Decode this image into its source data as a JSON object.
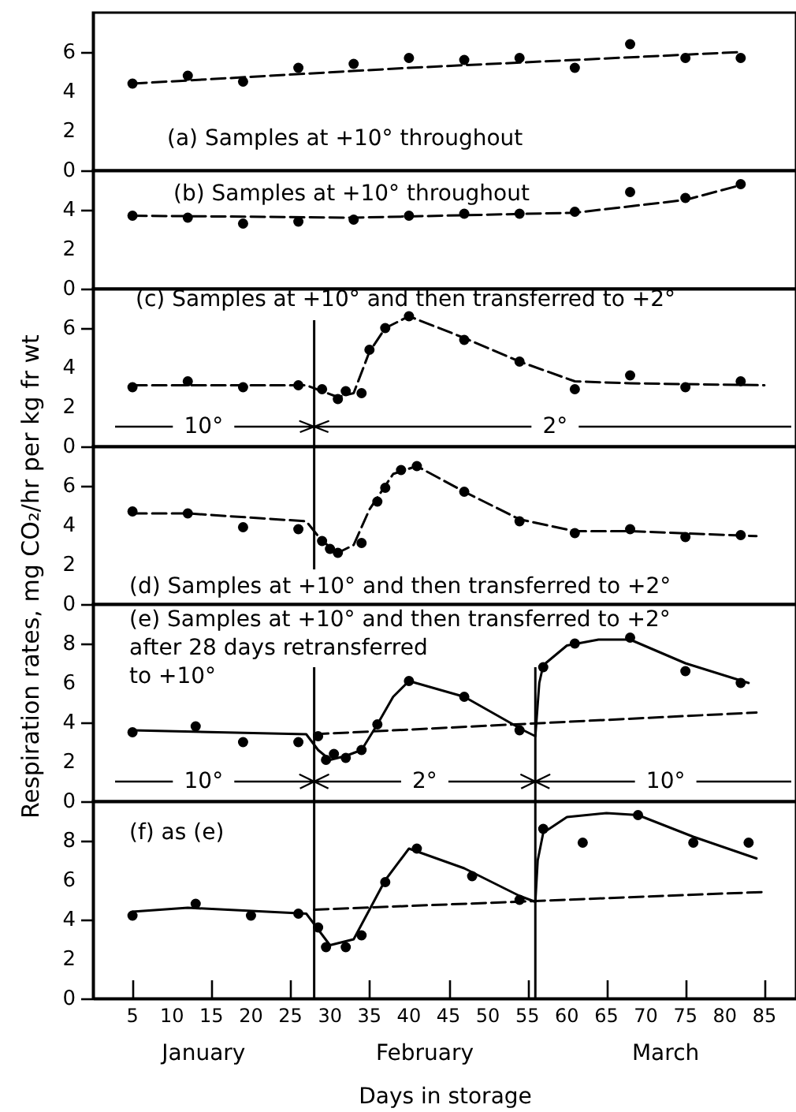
{
  "chart_data": [
    {
      "type": "scatter",
      "xlim": [
        0,
        89
      ],
      "ylim": [
        0,
        8
      ],
      "yticks": [
        0,
        2,
        4,
        6
      ],
      "tick_labels": "y",
      "series": [
        {
          "type": "scatter",
          "color": "#000000",
          "marker": "circle",
          "x": [
            5,
            12,
            19,
            26,
            33,
            40,
            47,
            54,
            61,
            68,
            75,
            82
          ],
          "values": [
            4.4,
            4.8,
            4.5,
            5.2,
            5.4,
            5.7,
            5.6,
            5.7,
            5.2,
            6.4,
            5.7,
            5.7
          ]
        },
        {
          "type": "line",
          "color": "#000000",
          "line_style": "dashed",
          "x": [
            5,
            40,
            82
          ],
          "values": [
            4.4,
            5.2,
            6.0
          ]
        }
      ],
      "annotations": [
        "(a) Samples at +10° throughout"
      ]
    },
    {
      "type": "scatter",
      "xlim": [
        0,
        89
      ],
      "ylim": [
        0,
        6
      ],
      "yticks": [
        0,
        2,
        4
      ],
      "tick_labels": "y",
      "series": [
        {
          "type": "scatter",
          "color": "#000000",
          "marker": "circle",
          "x": [
            5,
            12,
            19,
            26,
            33,
            40,
            47,
            54,
            61,
            68,
            75,
            82
          ],
          "values": [
            3.7,
            3.6,
            3.3,
            3.4,
            3.5,
            3.7,
            3.8,
            3.8,
            3.9,
            4.9,
            4.6,
            5.3
          ]
        },
        {
          "type": "line",
          "color": "#000000",
          "line_style": "dashed",
          "x": [
            5,
            33,
            61,
            75,
            82
          ],
          "values": [
            3.7,
            3.6,
            3.85,
            4.5,
            5.25
          ]
        }
      ],
      "annotations": [
        "(b) Samples at +10° throughout"
      ]
    },
    {
      "type": "scatter",
      "xlim": [
        0,
        89
      ],
      "ylim": [
        0,
        8
      ],
      "yticks": [
        0,
        2,
        4,
        6
      ],
      "tick_labels": "y",
      "series": [
        {
          "type": "scatter",
          "color": "#000000",
          "marker": "circle",
          "x": [
            5,
            12,
            19,
            26,
            29,
            31,
            32,
            34,
            35,
            37,
            40,
            47,
            54,
            61,
            68,
            75,
            82
          ],
          "values": [
            3.0,
            3.3,
            3.0,
            3.1,
            2.9,
            2.4,
            2.8,
            2.7,
            4.9,
            6.0,
            6.6,
            5.4,
            4.3,
            2.9,
            3.6,
            3.0,
            3.3
          ]
        },
        {
          "type": "line",
          "color": "#000000",
          "line_style": "dashed",
          "x": [
            5,
            27,
            29,
            31,
            33,
            35,
            37,
            40,
            47,
            54,
            61,
            68,
            85
          ],
          "values": [
            3.1,
            3.1,
            2.8,
            2.5,
            2.7,
            4.8,
            6.0,
            6.6,
            5.5,
            4.3,
            3.3,
            3.2,
            3.1
          ]
        }
      ],
      "ref_lines": [
        {
          "axis": "x",
          "value": 28
        }
      ],
      "annotations": [
        "(c) Samples at +10° and then transferred to +2°",
        "10°",
        "2°"
      ]
    },
    {
      "type": "scatter",
      "xlim": [
        0,
        89
      ],
      "ylim": [
        0,
        8
      ],
      "yticks": [
        0,
        2,
        4,
        6
      ],
      "tick_labels": "y",
      "ylabel": "Respiration rates,  mg CO₂/hr per kg fr wt",
      "series": [
        {
          "type": "scatter",
          "color": "#000000",
          "marker": "circle",
          "x": [
            5,
            12,
            19,
            26,
            29,
            30,
            31,
            34,
            36,
            37,
            39,
            41,
            47,
            54,
            61,
            68,
            75,
            82
          ],
          "values": [
            4.7,
            4.6,
            3.9,
            3.8,
            3.2,
            2.8,
            2.6,
            3.1,
            5.2,
            5.9,
            6.8,
            7.0,
            5.7,
            4.2,
            3.6,
            3.8,
            3.4,
            3.5
          ]
        },
        {
          "type": "line",
          "color": "#000000",
          "line_style": "dashed",
          "x": [
            5,
            12,
            27,
            29,
            31,
            33,
            35,
            38,
            41,
            47,
            54,
            61,
            68,
            84
          ],
          "values": [
            4.6,
            4.6,
            4.2,
            3.2,
            2.6,
            3.0,
            4.8,
            6.6,
            7.0,
            5.7,
            4.3,
            3.7,
            3.7,
            3.45
          ]
        }
      ],
      "ref_lines": [
        {
          "axis": "x",
          "value": 28
        }
      ],
      "annotations": [
        "(d) Samples at +10° and then transferred to +2°"
      ]
    },
    {
      "type": "scatter",
      "xlim": [
        0,
        89
      ],
      "ylim": [
        0,
        10
      ],
      "yticks": [
        0,
        2,
        4,
        6,
        8
      ],
      "tick_labels": "y",
      "series": [
        {
          "type": "scatter",
          "color": "#000000",
          "marker": "circle",
          "x": [
            5,
            13,
            19,
            26,
            28.5,
            29.5,
            30.5,
            32,
            34,
            36,
            40,
            47,
            54,
            57,
            61,
            68,
            75,
            82
          ],
          "values": [
            3.5,
            3.8,
            3.0,
            3.0,
            3.3,
            2.1,
            2.4,
            2.2,
            2.6,
            3.9,
            6.1,
            5.3,
            3.6,
            6.8,
            8.0,
            8.3,
            6.6,
            6.0
          ]
        },
        {
          "type": "line",
          "color": "#000000",
          "line_style": "solid",
          "x": [
            5,
            27,
            28.5,
            30,
            32,
            34,
            36,
            38,
            40,
            47,
            54.5,
            56,
            56.5,
            57,
            60,
            64,
            68,
            75,
            83
          ],
          "values": [
            3.6,
            3.4,
            2.6,
            2.1,
            2.3,
            2.6,
            3.9,
            5.3,
            6.1,
            5.3,
            3.6,
            3.3,
            6.0,
            6.9,
            7.9,
            8.2,
            8.2,
            7.0,
            6.0
          ]
        },
        {
          "type": "line",
          "color": "#000000",
          "line_style": "dashed",
          "x": [
            28,
            84
          ],
          "values": [
            3.4,
            4.5
          ]
        }
      ],
      "ref_lines": [
        {
          "axis": "x",
          "value": 28
        },
        {
          "axis": "x",
          "value": 56
        }
      ],
      "annotations": [
        "(e) Samples at +10° and then transferred to +2°\nafter 28 days retransferred\nto +10°",
        "10°",
        "2°",
        "10°"
      ]
    },
    {
      "type": "scatter",
      "xlim": [
        0,
        89
      ],
      "ylim": [
        0,
        10
      ],
      "yticks": [
        0,
        2,
        4,
        6,
        8
      ],
      "xticks": [
        5,
        10,
        15,
        20,
        25,
        30,
        35,
        40,
        45,
        50,
        55,
        60,
        65,
        70,
        75,
        80,
        85
      ],
      "xlabel": "Days in storage",
      "series": [
        {
          "type": "scatter",
          "color": "#000000",
          "marker": "circle",
          "x": [
            5,
            13,
            20,
            26,
            28.5,
            29.5,
            32,
            34,
            37,
            41,
            48,
            54,
            57,
            62,
            69,
            76,
            83
          ],
          "values": [
            4.2,
            4.8,
            4.2,
            4.3,
            3.6,
            2.6,
            2.6,
            3.2,
            5.9,
            7.6,
            6.2,
            5.0,
            8.6,
            7.9,
            9.3,
            7.9,
            7.9
          ]
        },
        {
          "type": "line",
          "color": "#000000",
          "line_style": "solid",
          "x": [
            5,
            12,
            27,
            28.5,
            30,
            33,
            35,
            37,
            40,
            47,
            54,
            56,
            56.3,
            57,
            60,
            65,
            69,
            76,
            84
          ],
          "values": [
            4.4,
            4.6,
            4.3,
            3.5,
            2.7,
            3.0,
            4.5,
            6.0,
            7.6,
            6.6,
            5.2,
            4.9,
            7.0,
            8.4,
            9.2,
            9.4,
            9.3,
            8.2,
            7.1
          ]
        },
        {
          "type": "line",
          "color": "#000000",
          "line_style": "dashed",
          "x": [
            28,
            85
          ],
          "values": [
            4.5,
            5.4
          ]
        }
      ],
      "ref_lines": [
        {
          "axis": "x",
          "value": 28
        },
        {
          "axis": "x",
          "value": 56
        }
      ],
      "annotations": [
        "(f) as (e)",
        "January",
        "February",
        "March"
      ]
    }
  ]
}
